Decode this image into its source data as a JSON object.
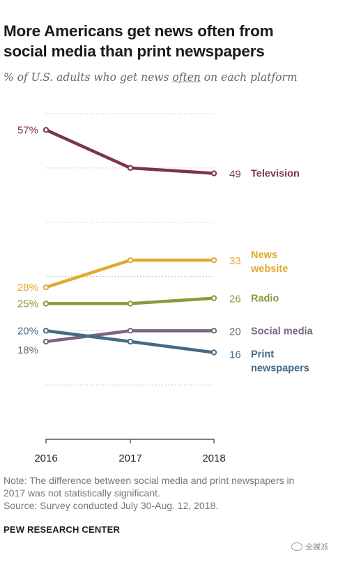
{
  "title_line1": "More Americans get news often from",
  "title_line2": "social media than print newspapers",
  "subtitle_pre": "% of U.S. adults who get news ",
  "subtitle_emph": "often",
  "subtitle_post": " on each platform",
  "note_line1": "Note: The difference between social media and print newspapers in",
  "note_line2": "2017 was not statistically significant.",
  "source_line": "Source: Survey conducted July 30-Aug. 12, 2018.",
  "brand": "PEW RESEARCH CENTER",
  "watermark": "全媒派",
  "colors": {
    "television": "#7b3545",
    "news_website": "#e0aa2c",
    "radio": "#8a9a3b",
    "social_media": "#7a6580",
    "print_newspapers": "#466a84",
    "axis": "#333333",
    "grid": "#bbbbbb"
  },
  "chart_data": {
    "type": "line",
    "x": [
      "2016",
      "2017",
      "2018"
    ],
    "ylim": [
      0,
      60
    ],
    "grid": "dotted horizontal",
    "series": [
      {
        "key": "television",
        "name": "Television",
        "values": [
          57,
          50,
          49
        ],
        "start_label": "57%",
        "end_label": "49",
        "label_lines": [
          "Television"
        ]
      },
      {
        "key": "news_website",
        "name": "News website",
        "values": [
          28,
          33,
          33
        ],
        "start_label": "28%",
        "end_label": "33",
        "label_lines": [
          "News",
          "website"
        ]
      },
      {
        "key": "radio",
        "name": "Radio",
        "values": [
          25,
          25,
          26
        ],
        "start_label": "25%",
        "end_label": "26",
        "label_lines": [
          "Radio"
        ]
      },
      {
        "key": "social_media",
        "name": "Social media",
        "values": [
          18,
          20,
          20
        ],
        "start_label": "18%",
        "end_label": "20",
        "label_lines": [
          "Social media"
        ]
      },
      {
        "key": "print_newspapers",
        "name": "Print newspapers",
        "values": [
          20,
          18,
          16
        ],
        "start_label": "20%",
        "end_label": "16",
        "label_lines": [
          "Print",
          "newspapers"
        ]
      }
    ]
  }
}
